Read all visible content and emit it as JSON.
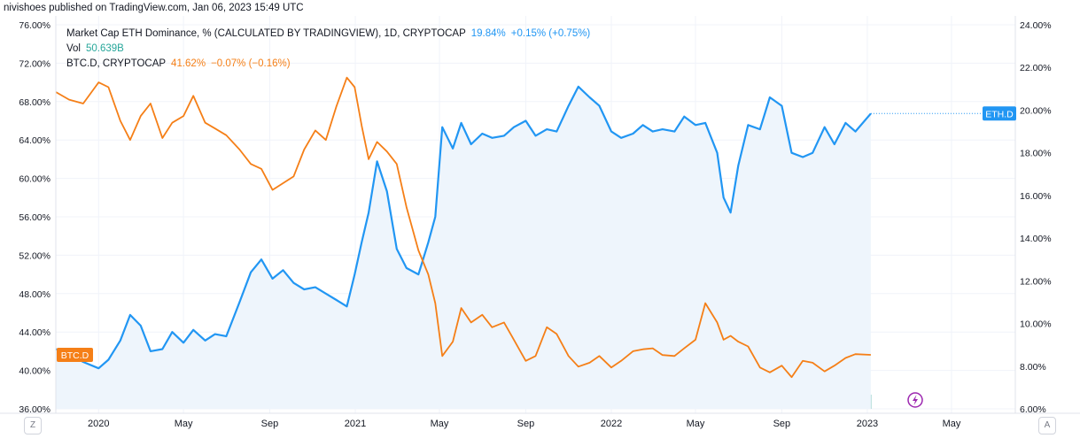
{
  "header": {
    "published": "nivishoes published on TradingView.com, Jan 06, 2023 15:49 UTC"
  },
  "legend": {
    "eth": {
      "title": "Market Cap ETH Dominance, % (CALCULATED BY TRADINGVIEW), 1D, CRYPTOCAP",
      "value": "19.84%",
      "change": "+0.15% (+0.75%)"
    },
    "vol": {
      "title": "Vol",
      "value": "50.639B"
    },
    "btc": {
      "title": "BTC.D, CRYPTOCAP",
      "value": "41.62%",
      "change": "−0.07% (−0.16%)"
    }
  },
  "buttons": {
    "left": "Z",
    "right": "A"
  },
  "colors": {
    "eth": "#2196f3",
    "btc": "#f57f17",
    "fill": "#eef5fc",
    "vol_up": "#a7d7d3",
    "vol_down": "#f3b3b4",
    "grid": "#f0f3fa",
    "flash": "#9c27b0"
  },
  "icons": {
    "flash": "lightning-icon"
  },
  "chart_data": {
    "type": "line",
    "x_axis": {
      "ticks": [
        "2020",
        "May",
        "Sep",
        "2021",
        "May",
        "Sep",
        "2022",
        "May",
        "Sep",
        "2023",
        "May"
      ],
      "range": [
        "2019-11-01",
        "2023-07-31"
      ]
    },
    "left_axis": {
      "ticks": [
        "76.00%",
        "72.00%",
        "68.00%",
        "64.00%",
        "60.00%",
        "56.00%",
        "52.00%",
        "48.00%",
        "44.00%",
        "40.00%",
        "36.00%"
      ],
      "range": [
        36,
        76
      ]
    },
    "right_axis": {
      "ticks": [
        "24.00%",
        "22.00%",
        "20.00%",
        "18.00%",
        "16.00%",
        "14.00%",
        "12.00%",
        "10.00%",
        "8.00%",
        "6.00%"
      ],
      "range": [
        6,
        24
      ]
    },
    "series": [
      {
        "name": "Market Cap ETH Dominance",
        "axis": "right",
        "last_label": "ETH.D",
        "x": [
          "2019-11-01",
          "2019-11-20",
          "2019-12-10",
          "2020-01-01",
          "2020-01-15",
          "2020-02-01",
          "2020-02-15",
          "2020-03-01",
          "2020-03-15",
          "2020-04-01",
          "2020-04-15",
          "2020-05-01",
          "2020-05-15",
          "2020-06-01",
          "2020-06-15",
          "2020-07-01",
          "2020-07-20",
          "2020-08-05",
          "2020-08-20",
          "2020-09-05",
          "2020-09-20",
          "2020-10-05",
          "2020-10-20",
          "2020-11-05",
          "2020-11-20",
          "2020-12-05",
          "2020-12-20",
          "2020-12-31",
          "2021-01-10",
          "2021-01-20",
          "2021-02-01",
          "2021-02-15",
          "2021-03-01",
          "2021-03-15",
          "2021-04-01",
          "2021-04-15",
          "2021-04-25",
          "2021-05-05",
          "2021-05-20",
          "2021-06-01",
          "2021-06-15",
          "2021-07-01",
          "2021-07-15",
          "2021-08-01",
          "2021-08-15",
          "2021-09-01",
          "2021-09-15",
          "2021-10-01",
          "2021-10-15",
          "2021-11-01",
          "2021-11-15",
          "2021-12-01",
          "2021-12-15",
          "2022-01-01",
          "2022-01-15",
          "2022-02-01",
          "2022-02-15",
          "2022-03-01",
          "2022-03-15",
          "2022-04-01",
          "2022-04-15",
          "2022-05-01",
          "2022-05-15",
          "2022-06-01",
          "2022-06-10",
          "2022-06-20",
          "2022-07-01",
          "2022-07-15",
          "2022-08-01",
          "2022-08-15",
          "2022-09-01",
          "2022-09-15",
          "2022-10-01",
          "2022-10-15",
          "2022-11-01",
          "2022-11-15",
          "2022-12-01",
          "2022-12-15",
          "2023-01-06"
        ],
        "y": [
          8.8,
          8.6,
          8.2,
          7.9,
          8.3,
          9.2,
          10.4,
          9.9,
          8.7,
          8.8,
          9.6,
          9.1,
          9.7,
          9.2,
          9.5,
          9.4,
          11.0,
          12.4,
          13.0,
          12.1,
          12.5,
          11.9,
          11.6,
          11.7,
          11.4,
          11.1,
          10.8,
          12.3,
          13.8,
          15.2,
          17.6,
          16.2,
          13.5,
          12.6,
          12.3,
          13.8,
          15.0,
          19.2,
          18.2,
          19.4,
          18.4,
          18.9,
          18.7,
          18.8,
          19.2,
          19.5,
          18.8,
          19.1,
          19.0,
          20.2,
          21.1,
          20.6,
          20.2,
          19.0,
          18.7,
          18.9,
          19.3,
          19.0,
          19.1,
          19.0,
          19.7,
          19.3,
          19.4,
          18.0,
          15.9,
          15.2,
          17.4,
          19.3,
          19.1,
          20.6,
          20.2,
          18.0,
          17.8,
          18.0,
          19.2,
          18.4,
          19.4,
          19.0,
          19.84
        ]
      },
      {
        "name": "BTC.D",
        "axis": "left",
        "last_label": "BTC.D",
        "x": [
          "2019-11-01",
          "2019-11-20",
          "2019-12-10",
          "2020-01-01",
          "2020-01-15",
          "2020-02-01",
          "2020-02-15",
          "2020-03-01",
          "2020-03-15",
          "2020-04-01",
          "2020-04-15",
          "2020-05-01",
          "2020-05-15",
          "2020-06-01",
          "2020-06-15",
          "2020-07-01",
          "2020-07-20",
          "2020-08-05",
          "2020-08-20",
          "2020-09-05",
          "2020-09-20",
          "2020-10-05",
          "2020-10-20",
          "2020-11-05",
          "2020-11-20",
          "2020-12-05",
          "2020-12-20",
          "2020-12-31",
          "2021-01-10",
          "2021-01-20",
          "2021-02-01",
          "2021-02-15",
          "2021-03-01",
          "2021-03-15",
          "2021-04-01",
          "2021-04-15",
          "2021-04-25",
          "2021-05-05",
          "2021-05-20",
          "2021-06-01",
          "2021-06-15",
          "2021-07-01",
          "2021-07-15",
          "2021-08-01",
          "2021-08-15",
          "2021-09-01",
          "2021-09-15",
          "2021-10-01",
          "2021-10-15",
          "2021-11-01",
          "2021-11-15",
          "2021-12-01",
          "2021-12-15",
          "2022-01-01",
          "2022-01-15",
          "2022-02-01",
          "2022-02-15",
          "2022-03-01",
          "2022-03-15",
          "2022-04-01",
          "2022-04-15",
          "2022-05-01",
          "2022-05-15",
          "2022-06-01",
          "2022-06-10",
          "2022-06-20",
          "2022-07-01",
          "2022-07-15",
          "2022-08-01",
          "2022-08-15",
          "2022-09-01",
          "2022-09-15",
          "2022-10-01",
          "2022-10-15",
          "2022-11-01",
          "2022-11-15",
          "2022-12-01",
          "2022-12-15",
          "2023-01-06"
        ],
        "y": [
          69.0,
          68.2,
          67.8,
          70.0,
          69.5,
          66.0,
          64.0,
          66.5,
          67.8,
          64.2,
          65.8,
          66.5,
          68.6,
          65.8,
          65.2,
          64.5,
          63.0,
          61.5,
          61.0,
          58.8,
          59.5,
          60.2,
          63.0,
          65.0,
          64.0,
          67.5,
          70.5,
          69.5,
          65.5,
          62.0,
          63.8,
          62.8,
          61.5,
          57.0,
          52.5,
          50.0,
          47.0,
          41.5,
          43.0,
          46.5,
          45.0,
          45.8,
          44.5,
          45.0,
          43.2,
          41.0,
          41.5,
          44.5,
          43.8,
          41.5,
          40.4,
          40.8,
          41.5,
          40.3,
          41.0,
          42.0,
          42.2,
          42.3,
          41.6,
          41.5,
          42.3,
          43.2,
          47.0,
          45.0,
          43.2,
          43.6,
          43.0,
          42.5,
          40.3,
          39.8,
          40.5,
          39.3,
          41.0,
          40.8,
          39.9,
          40.5,
          41.3,
          41.7,
          41.62
        ]
      }
    ]
  }
}
